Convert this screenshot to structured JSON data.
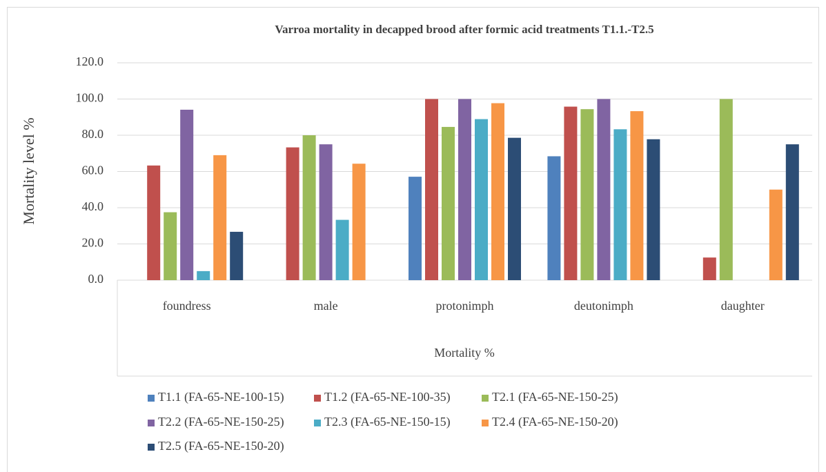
{
  "chart_data": {
    "type": "bar",
    "title": "Varroa mortality in decapped brood after formic acid treatments T1.1.-T2.5",
    "y_label": "Mortality level %",
    "x_label": "Mortality %",
    "categories": [
      "foundress",
      "male",
      "protonimph",
      "deutonimph",
      "daughter"
    ],
    "series": [
      {
        "name": "T1.1 (FA-65-NE-100-15)",
        "color": "#4f81bd",
        "values": [
          0,
          0,
          57.1,
          68.4,
          0
        ]
      },
      {
        "name": "T1.2 (FA-65-NE-100-35)",
        "color": "#c0504d",
        "values": [
          63.3,
          73.3,
          100,
          95.8,
          12.5
        ]
      },
      {
        "name": "T2.1 (FA-65-NE-150-25)",
        "color": "#9bbb59",
        "values": [
          37.5,
          80,
          84.6,
          94.4,
          100
        ]
      },
      {
        "name": "T2.2 (FA-65-NE-150-25)",
        "color": "#8064a2",
        "values": [
          94.1,
          75,
          100,
          100,
          0
        ]
      },
      {
        "name": "T2.3 (FA-65-NE-150-15)",
        "color": "#4bacc6",
        "values": [
          5,
          33.3,
          88.9,
          83.3,
          0
        ]
      },
      {
        "name": "T2.4 (FA-65-NE-150-20)",
        "color": "#f79646",
        "values": [
          69,
          64.3,
          97.7,
          93.3,
          50
        ]
      },
      {
        "name": "T2.5 (FA-65-NE-150-20)",
        "color": "#2c4d75",
        "values": [
          26.7,
          0,
          78.6,
          77.8,
          75
        ]
      }
    ],
    "ylim": [
      0,
      120
    ],
    "yticks": [
      {
        "value": 0,
        "label": "0.0"
      },
      {
        "value": 20,
        "label": "20.0"
      },
      {
        "value": 40,
        "label": "40.0"
      },
      {
        "value": 60,
        "label": "60.0"
      },
      {
        "value": 80,
        "label": "80.0"
      },
      {
        "value": 100,
        "label": "100.0"
      },
      {
        "value": 120,
        "label": "120.0"
      }
    ],
    "grid": true,
    "legend": "bottom"
  }
}
